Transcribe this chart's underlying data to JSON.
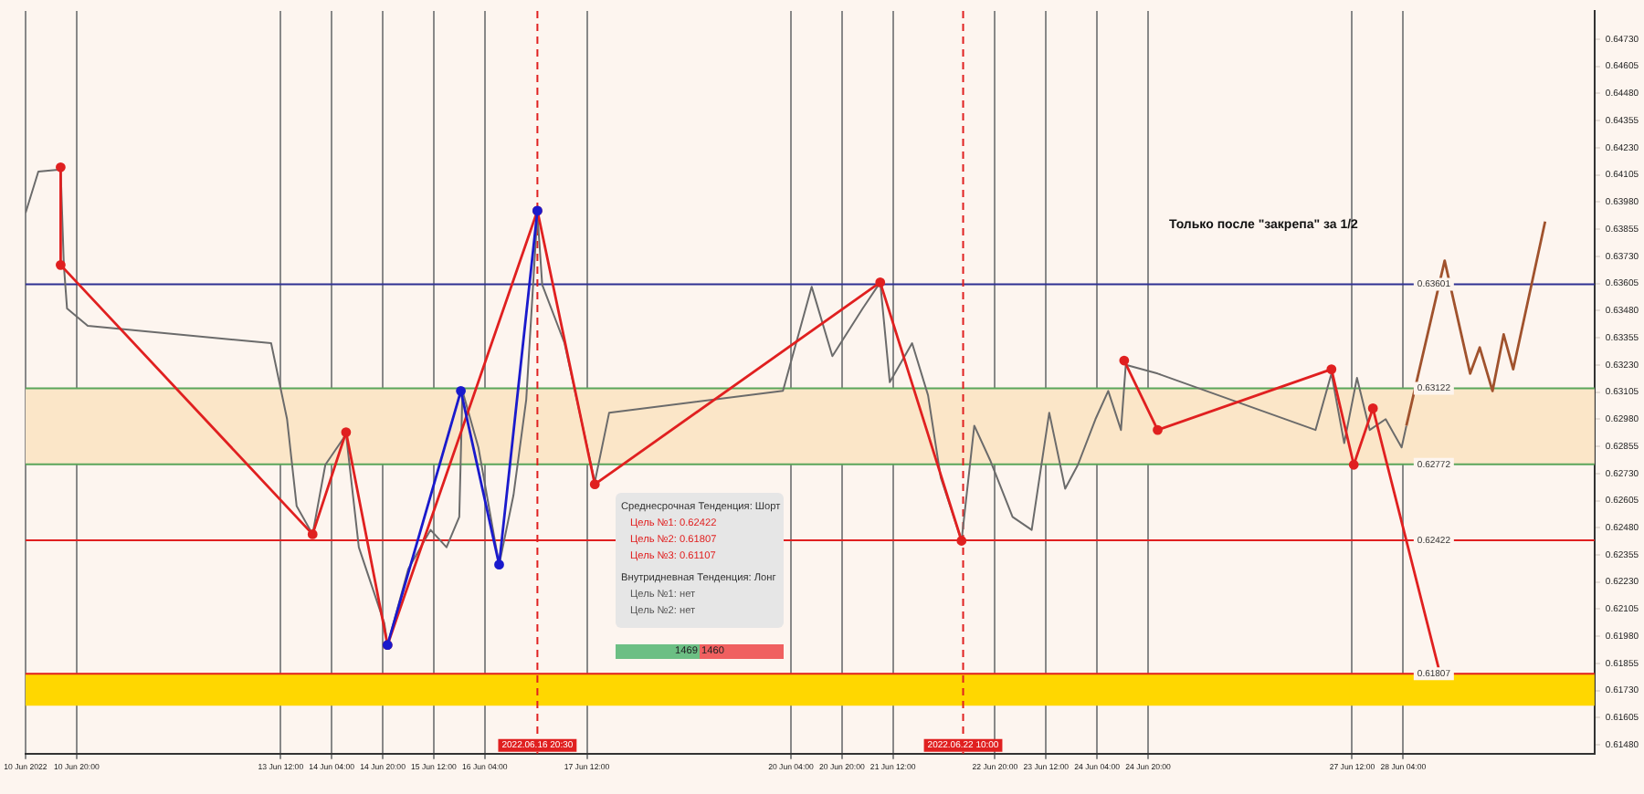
{
  "chart_data": {
    "type": "line",
    "xlim": [
      "2022-06-10T04:00",
      "2022-06-30T16:00"
    ],
    "xticks": [
      {
        "value": "2022-06-10T04:00",
        "label": "10 Jun 2022"
      },
      {
        "value": "2022-06-10T20:00",
        "label": "10 Jun 20:00"
      },
      {
        "value": "2022-06-13T12:00",
        "label": "13 Jun 12:00"
      },
      {
        "value": "2022-06-14T04:00",
        "label": "14 Jun 04:00"
      },
      {
        "value": "2022-06-14T20:00",
        "label": "14 Jun 20:00"
      },
      {
        "value": "2022-06-15T12:00",
        "label": "15 Jun 12:00"
      },
      {
        "value": "2022-06-16T04:00",
        "label": "16 Jun 04:00"
      },
      {
        "value": "2022-06-17T12:00",
        "label": "17 Jun 12:00"
      },
      {
        "value": "2022-06-20T04:00",
        "label": "20 Jun 04:00"
      },
      {
        "value": "2022-06-20T20:00",
        "label": "20 Jun 20:00"
      },
      {
        "value": "2022-06-21T12:00",
        "label": "21 Jun 12:00"
      },
      {
        "value": "2022-06-22T20:00",
        "label": "22 Jun 20:00"
      },
      {
        "value": "2022-06-23T12:00",
        "label": "23 Jun 12:00"
      },
      {
        "value": "2022-06-24T04:00",
        "label": "24 Jun 04:00"
      },
      {
        "value": "2022-06-24T20:00",
        "label": "24 Jun 20:00"
      },
      {
        "value": "2022-06-27T12:00",
        "label": "27 Jun 12:00"
      },
      {
        "value": "2022-06-28T04:00",
        "label": "28 Jun 04:00"
      }
    ],
    "ylim": [
      0.6144,
      0.6486
    ],
    "yticks": [
      {
        "value": 0.6148,
        "label": "0.61480"
      },
      {
        "value": 0.61605,
        "label": "0.61605"
      },
      {
        "value": 0.6173,
        "label": "0.61730"
      },
      {
        "value": 0.61855,
        "label": "0.61855"
      },
      {
        "value": 0.6198,
        "label": "0.61980"
      },
      {
        "value": 0.62105,
        "label": "0.62105"
      },
      {
        "value": 0.6223,
        "label": "0.62230"
      },
      {
        "value": 0.62355,
        "label": "0.62355"
      },
      {
        "value": 0.6248,
        "label": "0.62480"
      },
      {
        "value": 0.62605,
        "label": "0.62605"
      },
      {
        "value": 0.6273,
        "label": "0.62730"
      },
      {
        "value": 0.62855,
        "label": "0.62855"
      },
      {
        "value": 0.6298,
        "label": "0.62980"
      },
      {
        "value": 0.63105,
        "label": "0.63105"
      },
      {
        "value": 0.6323,
        "label": "0.63230"
      },
      {
        "value": 0.63355,
        "label": "0.63355"
      },
      {
        "value": 0.6348,
        "label": "0.63480"
      },
      {
        "value": 0.63605,
        "label": "0.63605"
      },
      {
        "value": 0.6373,
        "label": "0.63730"
      },
      {
        "value": 0.63855,
        "label": "0.63855"
      },
      {
        "value": 0.6398,
        "label": "0.63980"
      },
      {
        "value": 0.64105,
        "label": "0.64105"
      },
      {
        "value": 0.6423,
        "label": "0.64230"
      },
      {
        "value": 0.64355,
        "label": "0.64355"
      },
      {
        "value": 0.6448,
        "label": "0.64480"
      },
      {
        "value": 0.64605,
        "label": "0.64605"
      },
      {
        "value": 0.6473,
        "label": "0.64730"
      }
    ],
    "grid": "x",
    "series": [
      {
        "color": "#6b6b6b",
        "marker": "none",
        "x": [
          "2022-06-10T04:00",
          "2022-06-10T08:00",
          "2022-06-10T15:00",
          "2022-06-10T16:00",
          "2022-06-10T17:00",
          "2022-06-10T23:30",
          "2022-06-13T09:00",
          "2022-06-13T14:00",
          "2022-06-13T17:00",
          "2022-06-13T22:00",
          "2022-06-14T02:00",
          "2022-06-14T08:30",
          "2022-06-14T12:30",
          "2022-06-14T20:30",
          "2022-06-14T21:30",
          "2022-06-15T04:00",
          "2022-06-15T11:00",
          "2022-06-15T16:00",
          "2022-06-15T20:00",
          "2022-06-15T21:00",
          "2022-06-16T02:00",
          "2022-06-16T08:30",
          "2022-06-16T13:00",
          "2022-06-16T17:00",
          "2022-06-16T20:30",
          "2022-06-16T22:00",
          "2022-06-17T05:00",
          "2022-06-17T14:30",
          "2022-06-17T19:00",
          "2022-06-20T01:30",
          "2022-06-20T10:30",
          "2022-06-20T17:00",
          "2022-06-21T02:30",
          "2022-06-21T08:00",
          "2022-06-21T11:00",
          "2022-06-21T18:00",
          "2022-06-21T23:00",
          "2022-06-22T03:00",
          "2022-06-22T09:30",
          "2022-06-22T13:30",
          "2022-06-22T18:30",
          "2022-06-23T01:30",
          "2022-06-23T07:30",
          "2022-06-23T13:00",
          "2022-06-23T18:00",
          "2022-06-23T22:00",
          "2022-06-24T03:30",
          "2022-06-24T07:30",
          "2022-06-24T11:30",
          "2022-06-24T13:00",
          "2022-06-24T23:00",
          "2022-06-27T00:30",
          "2022-06-27T05:30",
          "2022-06-27T09:30",
          "2022-06-27T13:30",
          "2022-06-27T17:30",
          "2022-06-27T22:30",
          "2022-06-28T03:30",
          "2022-06-28T05:00"
        ],
        "values": [
          0.6393,
          0.6412,
          0.6413,
          0.6369,
          0.6349,
          0.6341,
          0.6333,
          0.6298,
          0.6258,
          0.6245,
          0.6277,
          0.6291,
          0.6239,
          0.6204,
          0.6194,
          0.6229,
          0.6247,
          0.6239,
          0.6253,
          0.6311,
          0.6285,
          0.6231,
          0.6263,
          0.6307,
          0.6393,
          0.636,
          0.6333,
          0.6269,
          0.6301,
          0.6311,
          0.6359,
          0.6327,
          0.6349,
          0.6361,
          0.6315,
          0.6333,
          0.6309,
          0.6271,
          0.6242,
          0.6295,
          0.6279,
          0.6253,
          0.6247,
          0.6301,
          0.6266,
          0.6277,
          0.6298,
          0.6311,
          0.6293,
          0.6323,
          0.6319,
          0.6293,
          0.6319,
          0.6287,
          0.6317,
          0.6293,
          0.6298,
          0.6285,
          0.6295
        ]
      },
      {
        "color": "#e02020",
        "marker": "circle",
        "x": [
          "2022-06-10T15:00",
          "2022-06-10T15:00",
          "2022-06-13T22:00",
          "2022-06-14T08:30",
          "2022-06-14T21:30",
          "2022-06-16T20:30",
          "2022-06-17T14:30",
          "2022-06-21T08:00",
          "2022-06-22T09:30",
          "2022-06-23T08:00",
          "2022-06-24T12:30",
          "2022-06-24T23:00",
          "2022-06-27T05:30",
          "2022-06-27T12:30",
          "2022-06-27T18:30",
          "2022-06-28T15:30"
        ],
        "values": [
          0.6414,
          0.6369,
          0.6245,
          0.6292,
          0.6194,
          0.6394,
          0.6268,
          0.6361,
          0.6242,
          null,
          0.6325,
          0.6293,
          0.6321,
          0.6277,
          0.6303,
          0.6181
        ]
      },
      {
        "color": "#1a1acc",
        "marker": "circle",
        "x": [
          "2022-06-14T21:30",
          "2022-06-15T20:30",
          "2022-06-16T08:30",
          "2022-06-16T20:30"
        ],
        "values": [
          0.6194,
          0.6311,
          0.6231,
          0.6394
        ]
      },
      {
        "color": "#a0522d",
        "marker": "none",
        "x": [
          "2022-06-28T05:00",
          "2022-06-28T17:00",
          "2022-06-29T01:00",
          "2022-06-29T04:00",
          "2022-06-29T08:00",
          "2022-06-29T11:30",
          "2022-06-29T14:30",
          "2022-06-30T00:30"
        ],
        "values": [
          0.6295,
          0.6371,
          0.6319,
          0.6331,
          0.6311,
          0.6337,
          0.6321,
          0.6389
        ]
      }
    ],
    "bands": [
      {
        "axis": "y",
        "from": 0.62772,
        "to": 0.63122,
        "color": "#fbe6c8"
      },
      {
        "axis": "y",
        "from": 0.6166,
        "to": 0.6181,
        "color": "#ffd700"
      }
    ],
    "ref_lines": [
      {
        "axis": "y",
        "value": 0.63601,
        "label": "0.63601",
        "color": "#2e3192"
      },
      {
        "axis": "y",
        "value": 0.63122,
        "label": "0.63122",
        "color": "#5aa55a"
      },
      {
        "axis": "y",
        "value": 0.62772,
        "label": "0.62772",
        "color": "#5aa55a"
      },
      {
        "axis": "y",
        "value": 0.62422,
        "label": "0.62422",
        "color": "#e02020"
      },
      {
        "axis": "y",
        "value": 0.61807,
        "label": "0.61807",
        "color": "#e02020"
      },
      {
        "axis": "x",
        "value": "2022-06-16T20:30",
        "label": "2022.06.16 20:30",
        "color": "#e02020",
        "line_style": "dashed"
      },
      {
        "axis": "x",
        "value": "2022-06-22T10:00",
        "label": "2022.06.22 10:00",
        "color": "#e02020",
        "line_style": "dashed"
      }
    ],
    "annotations": [
      "Только после \"закрепа\" за 1/2",
      "Среднесрочная Тенденция: Шорт",
      "Цель №1: 0.62422",
      "Цель №2: 0.61807",
      "Цель №3: 0.61107",
      "Внутридневная Тенденция: Лонг",
      "Цель №1: нет",
      "Цель №2: нет",
      "1469",
      "1460"
    ]
  }
}
